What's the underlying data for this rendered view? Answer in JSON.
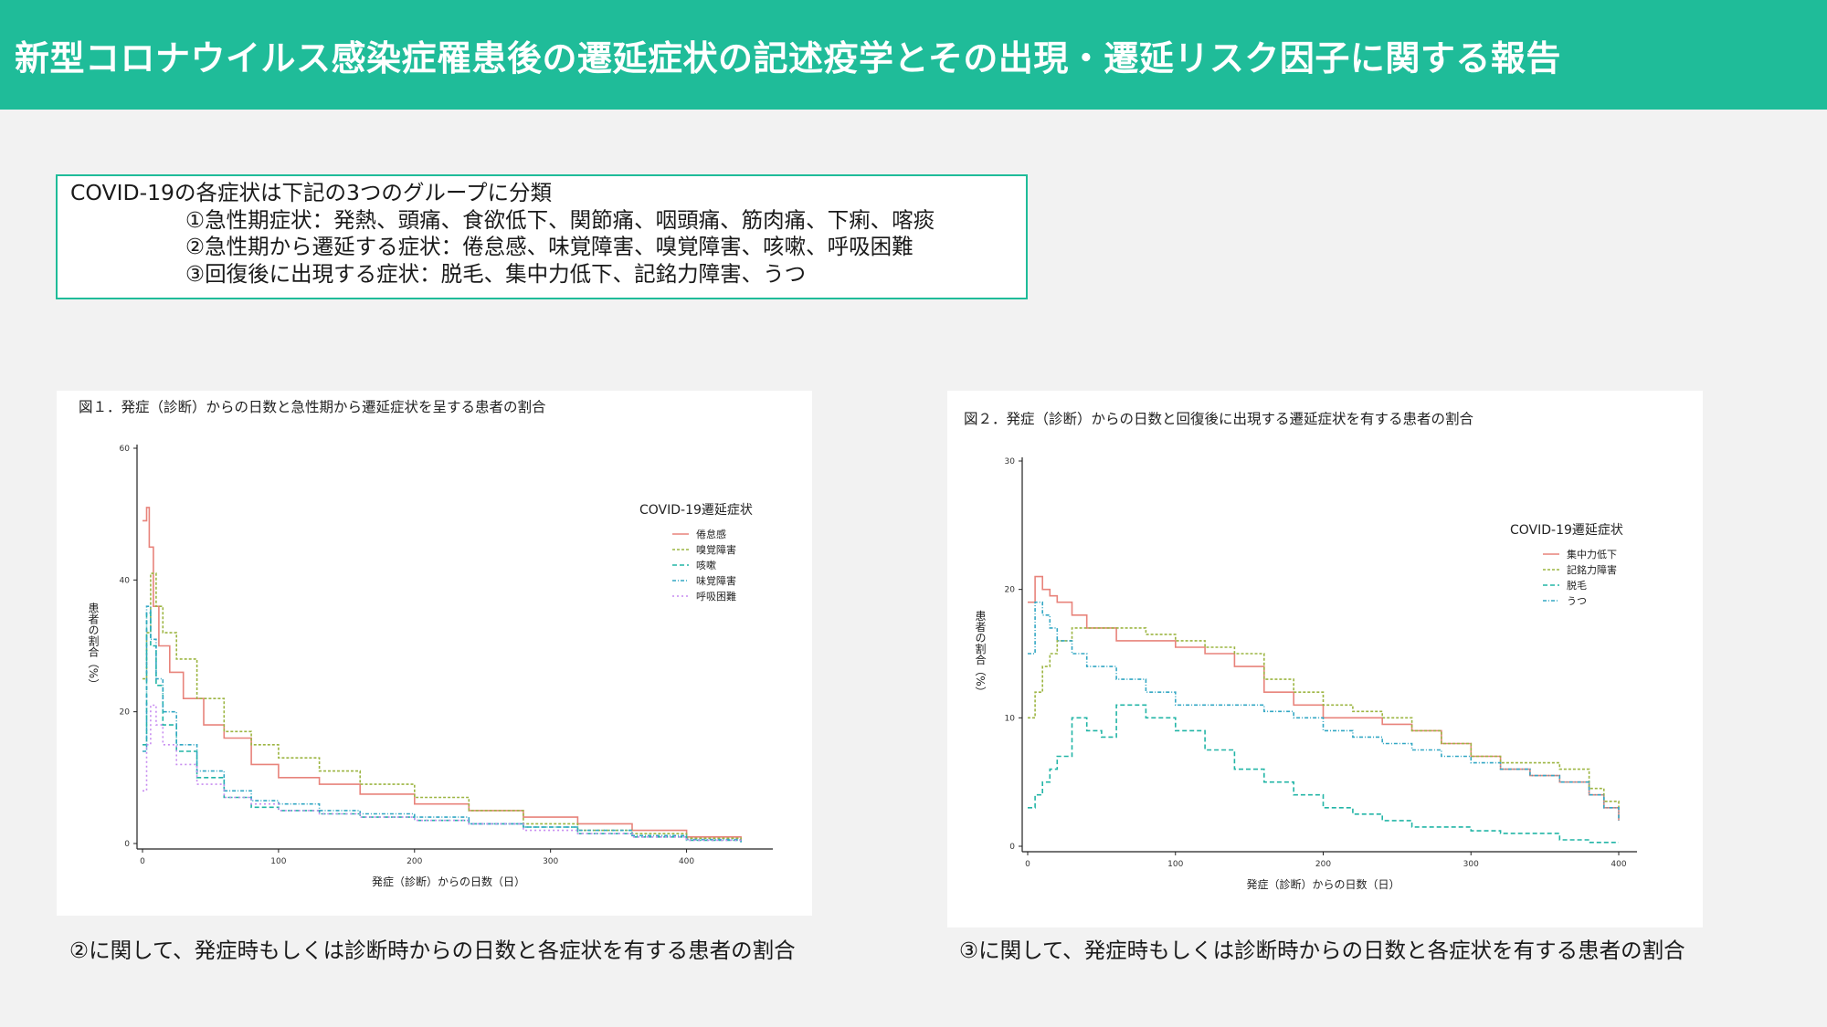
{
  "header": {
    "title": "新型コロナウイルス感染症罹患後の遷延症状の記述疫学とその出現・遷延リスク因子に関する報告"
  },
  "note": {
    "heading": "COVID-19の各症状は下記の3つのグループに分類",
    "groups": [
      "①急性期症状：発熱、頭痛、食欲低下、関節痛、咽頭痛、筋肉痛、下痢、喀痰",
      "②急性期から遷延する症状：倦怠感、味覚障害、嗅覚障害、咳嗽、呼吸困難",
      "③回復後に出現する症状：脱毛、集中力低下、記銘力障害、うつ"
    ]
  },
  "captions": {
    "fig1": "②に関して、発症時もしくは診断時からの日数と各症状を有する患者の割合",
    "fig2": "③に関して、発症時もしくは診断時からの日数と各症状を有する患者の割合"
  },
  "colors": {
    "accent": "#1fbc99",
    "series": [
      "#e8837b",
      "#9cb542",
      "#22b5a6",
      "#33a7c4",
      "#c78bf0"
    ]
  },
  "chart_data": [
    {
      "type": "line",
      "title": "図１．発症（診断）からの日数と急性期から遷延症状を呈する患者の割合",
      "xlabel": "発症（診断）からの日数（日）",
      "ylabel": "患者の割合（%）",
      "xlim": [
        0,
        450
      ],
      "ylim": [
        0,
        60
      ],
      "xticks": [
        0,
        100,
        200,
        300,
        400
      ],
      "yticks": [
        0,
        20,
        40,
        60
      ],
      "grid": false,
      "legend_title": "COVID-19遷延症状",
      "legend_position": "right",
      "series": [
        {
          "name": "倦怠感",
          "x": [
            0,
            3,
            5,
            8,
            12,
            20,
            30,
            45,
            60,
            80,
            100,
            130,
            160,
            200,
            240,
            280,
            320,
            360,
            400,
            440
          ],
          "y": [
            49,
            51,
            45,
            36,
            30,
            26,
            22,
            18,
            16,
            12,
            10,
            9,
            7.5,
            6,
            5,
            4,
            3,
            2,
            1,
            0.5
          ]
        },
        {
          "name": "嗅覚障害",
          "x": [
            0,
            3,
            6,
            10,
            15,
            25,
            40,
            60,
            80,
            100,
            130,
            160,
            200,
            240,
            280,
            320,
            360,
            400,
            440
          ],
          "y": [
            25,
            32,
            41,
            36,
            32,
            28,
            22,
            17,
            15,
            13,
            11,
            9,
            7,
            5,
            3,
            2,
            1.5,
            0.8,
            0.3
          ]
        },
        {
          "name": "咳嗽",
          "x": [
            0,
            3,
            6,
            10,
            15,
            25,
            40,
            60,
            80,
            100,
            130,
            160,
            200,
            240,
            280,
            320,
            360,
            400,
            440
          ],
          "y": [
            15,
            35,
            30,
            24,
            18,
            14,
            10,
            7,
            5.5,
            5,
            4.5,
            4,
            3.5,
            3,
            2.5,
            1.5,
            1,
            0.5,
            0.2
          ]
        },
        {
          "name": "味覚障害",
          "x": [
            0,
            3,
            6,
            10,
            15,
            25,
            40,
            60,
            80,
            100,
            130,
            160,
            200,
            240,
            280,
            320,
            360,
            400,
            440
          ],
          "y": [
            14,
            36,
            31,
            25,
            20,
            15,
            11,
            8,
            6.5,
            6,
            5,
            4.5,
            4,
            3,
            2.5,
            2,
            1.2,
            0.6,
            0.2
          ]
        },
        {
          "name": "呼吸困難",
          "x": [
            0,
            3,
            6,
            10,
            15,
            25,
            40,
            60,
            80,
            100,
            130,
            160,
            200,
            240,
            280,
            320,
            360,
            400,
            440
          ],
          "y": [
            8,
            15,
            21,
            18,
            15,
            12,
            9,
            7,
            6,
            5,
            4.5,
            4,
            3.5,
            3,
            2,
            1.5,
            1,
            0.5,
            0.2
          ]
        }
      ]
    },
    {
      "type": "line",
      "title": "図２．発症（診断）からの日数と回復後に出現する遷延症状を有する患者の割合",
      "xlabel": "発症（診断）からの日数（日）",
      "ylabel": "患者の割合（%）",
      "xlim": [
        0,
        400
      ],
      "ylim": [
        0,
        30
      ],
      "xticks": [
        0,
        100,
        200,
        300,
        400
      ],
      "yticks": [
        0,
        10,
        20,
        30
      ],
      "grid": false,
      "legend_title": "COVID-19遷延症状",
      "legend_position": "right",
      "series": [
        {
          "name": "集中力低下",
          "x": [
            0,
            5,
            10,
            15,
            20,
            30,
            40,
            60,
            80,
            100,
            120,
            140,
            160,
            180,
            200,
            220,
            240,
            260,
            280,
            300,
            320,
            340,
            360,
            380,
            390,
            400
          ],
          "y": [
            19,
            21,
            20,
            19.5,
            19,
            18,
            17,
            16,
            16,
            15.5,
            15,
            14,
            12,
            11,
            10,
            10,
            9.5,
            9,
            8,
            7,
            6,
            5.5,
            5,
            4,
            3,
            2
          ]
        },
        {
          "name": "記銘力障害",
          "x": [
            0,
            5,
            10,
            15,
            20,
            30,
            40,
            60,
            80,
            100,
            120,
            140,
            160,
            180,
            200,
            220,
            240,
            260,
            280,
            300,
            320,
            340,
            360,
            380,
            390,
            400
          ],
          "y": [
            10,
            12,
            14,
            15,
            16,
            17,
            17,
            17,
            16.5,
            16,
            15.5,
            15,
            13,
            12,
            11,
            10.5,
            10,
            9,
            8,
            7,
            6.5,
            6.5,
            6,
            4.5,
            3.5,
            3
          ]
        },
        {
          "name": "脱毛",
          "x": [
            0,
            5,
            10,
            15,
            20,
            30,
            40,
            50,
            60,
            80,
            100,
            120,
            140,
            160,
            180,
            200,
            220,
            240,
            260,
            280,
            300,
            320,
            340,
            360,
            380,
            400
          ],
          "y": [
            3,
            4,
            5,
            6,
            7,
            10,
            9,
            8.5,
            11,
            10,
            9,
            7.5,
            6,
            5,
            4,
            3,
            2.5,
            2,
            1.5,
            1.5,
            1.2,
            1,
            1,
            0.5,
            0.3,
            0.3
          ]
        },
        {
          "name": "うつ",
          "x": [
            0,
            5,
            10,
            15,
            20,
            30,
            40,
            60,
            80,
            100,
            120,
            140,
            160,
            180,
            200,
            220,
            240,
            260,
            280,
            300,
            320,
            340,
            360,
            380,
            390,
            400
          ],
          "y": [
            15,
            19,
            18,
            17,
            16,
            15,
            14,
            13,
            12,
            11,
            11,
            11,
            10.5,
            10,
            9,
            8.5,
            8,
            7.5,
            7,
            6.5,
            6,
            5.5,
            5,
            4,
            3,
            2
          ]
        }
      ]
    }
  ]
}
